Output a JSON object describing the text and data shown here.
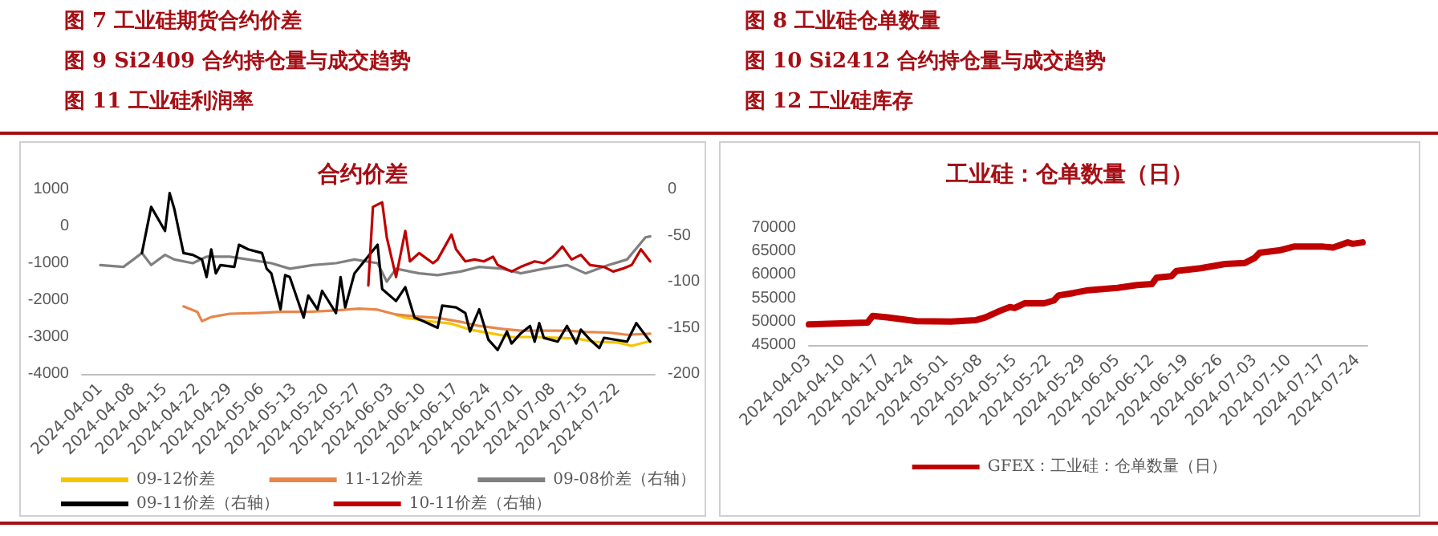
{
  "chart_data": [
    {
      "type": "line",
      "title": "合约价差",
      "annotations": [
        "图 7 工业硅期货合约价差",
        "图 9 Si2409 合约持仓量与成交趋势",
        "图 11 工业硅利润率"
      ],
      "xlim": [
        "2024-03-28",
        "2024-07-30"
      ],
      "xticks": [
        "2024-04-01",
        "2024-04-08",
        "2024-04-15",
        "2024-04-22",
        "2024-04-29",
        "2024-05-06",
        "2024-05-13",
        "2024-05-20",
        "2024-05-27",
        "2024-06-03",
        "2024-06-10",
        "2024-06-17",
        "2024-06-24",
        "2024-07-01",
        "2024-07-08",
        "2024-07-15",
        "2024-07-22"
      ],
      "ylim": [
        -4000,
        1000
      ],
      "yticks": [
        -4000,
        -3000,
        -2000,
        -1000,
        0,
        1000
      ],
      "y2lim": [
        -200,
        0
      ],
      "y2ticks": [
        -200,
        -150,
        -100,
        -50,
        0
      ],
      "grid": false,
      "legend": "bottom",
      "series": [
        {
          "name": "09-12价差",
          "color": "#f5c400",
          "x": [
            "2024-06-04",
            "2024-06-06",
            "2024-06-11",
            "2024-06-16",
            "2024-06-20",
            "2024-06-25",
            "2024-06-29",
            "2024-07-04",
            "2024-07-08",
            "2024-07-13",
            "2024-07-17",
            "2024-07-22",
            "2024-07-25",
            "2024-07-29"
          ],
          "values": [
            -2400,
            -2480,
            -2570,
            -2640,
            -2800,
            -2910,
            -3000,
            -3000,
            -3020,
            -3040,
            -3130,
            -3150,
            -3240,
            -3110
          ]
        },
        {
          "name": "11-12价差",
          "color": "#e8864a",
          "x": [
            "2024-04-19",
            "2024-04-22",
            "2024-04-23",
            "2024-04-25",
            "2024-04-29",
            "2024-05-05",
            "2024-05-10",
            "2024-05-16",
            "2024-05-22",
            "2024-05-27",
            "2024-05-31",
            "2024-06-04",
            "2024-06-09",
            "2024-06-13",
            "2024-06-18",
            "2024-06-22",
            "2024-06-27",
            "2024-07-01",
            "2024-07-06",
            "2024-07-11",
            "2024-07-15",
            "2024-07-20",
            "2024-07-24",
            "2024-07-29"
          ],
          "values": [
            -2170,
            -2320,
            -2570,
            -2460,
            -2370,
            -2350,
            -2320,
            -2320,
            -2280,
            -2230,
            -2260,
            -2390,
            -2450,
            -2480,
            -2590,
            -2700,
            -2780,
            -2830,
            -2830,
            -2830,
            -2860,
            -2880,
            -2940,
            -2910
          ]
        },
        {
          "name": "09-08价差（右轴）",
          "color": "#808080",
          "axis": "y2",
          "x": [
            "2024-04-01",
            "2024-04-06",
            "2024-04-10",
            "2024-04-12",
            "2024-04-15",
            "2024-04-17",
            "2024-04-21",
            "2024-04-24",
            "2024-04-29",
            "2024-05-03",
            "2024-05-08",
            "2024-05-12",
            "2024-05-17",
            "2024-05-22",
            "2024-05-26",
            "2024-05-31",
            "2024-06-02",
            "2024-06-04",
            "2024-06-09",
            "2024-06-13",
            "2024-06-18",
            "2024-06-22",
            "2024-06-27",
            "2024-07-01",
            "2024-07-06",
            "2024-07-11",
            "2024-07-15",
            "2024-07-20",
            "2024-07-24",
            "2024-07-28",
            "2024-07-29"
          ],
          "values": [
            -82,
            -84,
            -69,
            -82,
            -71,
            -76,
            -80,
            -73,
            -73,
            -76,
            -80,
            -86,
            -82,
            -80,
            -76,
            -80,
            -100,
            -86,
            -91,
            -93,
            -89,
            -84,
            -86,
            -91,
            -86,
            -82,
            -91,
            -82,
            -76,
            -52,
            -51
          ]
        },
        {
          "name": "09-11价差（右轴）",
          "color": "#000000",
          "axis": "y2",
          "x": [
            "2024-04-10",
            "2024-04-12",
            "2024-04-15",
            "2024-04-16",
            "2024-04-17",
            "2024-04-19",
            "2024-04-21",
            "2024-04-23",
            "2024-04-24",
            "2024-04-25",
            "2024-04-26",
            "2024-04-27",
            "2024-04-30",
            "2024-05-01",
            "2024-05-03",
            "2024-05-06",
            "2024-05-07",
            "2024-05-08",
            "2024-05-10",
            "2024-05-11",
            "2024-05-12",
            "2024-05-15",
            "2024-05-16",
            "2024-05-18",
            "2024-05-19",
            "2024-05-22",
            "2024-05-23",
            "2024-05-24",
            "2024-05-26",
            "2024-05-31",
            "2024-06-01",
            "2024-06-04",
            "2024-06-06",
            "2024-06-08",
            "2024-06-10",
            "2024-06-13",
            "2024-06-14",
            "2024-06-17",
            "2024-06-19",
            "2024-06-20",
            "2024-06-22",
            "2024-06-24",
            "2024-06-26",
            "2024-06-28",
            "2024-06-29",
            "2024-07-01",
            "2024-07-03",
            "2024-07-04",
            "2024-07-05",
            "2024-07-06",
            "2024-07-09",
            "2024-07-11",
            "2024-07-13",
            "2024-07-14",
            "2024-07-16",
            "2024-07-18",
            "2024-07-19",
            "2024-07-24",
            "2024-07-26",
            "2024-07-29"
          ],
          "values": [
            -69,
            -19,
            -45,
            -4,
            -21,
            -69,
            -71,
            -76,
            -95,
            -65,
            -91,
            -82,
            -84,
            -60,
            -65,
            -69,
            -86,
            -91,
            -130,
            -93,
            -95,
            -139,
            -115,
            -130,
            -110,
            -134,
            -95,
            -128,
            -91,
            -60,
            -108,
            -121,
            -106,
            -139,
            -143,
            -150,
            -126,
            -128,
            -134,
            -154,
            -130,
            -163,
            -174,
            -154,
            -167,
            -156,
            -148,
            -165,
            -145,
            -161,
            -165,
            -148,
            -167,
            -152,
            -163,
            -172,
            -161,
            -165,
            -145,
            -165
          ]
        },
        {
          "name": "10-11价差（右轴）",
          "color": "#c00000",
          "axis": "y2",
          "x": [
            "2024-05-29",
            "2024-05-30",
            "2024-06-01",
            "2024-06-02",
            "2024-06-04",
            "2024-06-06",
            "2024-06-07",
            "2024-06-09",
            "2024-06-12",
            "2024-06-13",
            "2024-06-16",
            "2024-06-17",
            "2024-06-19",
            "2024-06-21",
            "2024-06-23",
            "2024-06-25",
            "2024-06-26",
            "2024-06-29",
            "2024-07-01",
            "2024-07-04",
            "2024-07-06",
            "2024-07-08",
            "2024-07-10",
            "2024-07-12",
            "2024-07-14",
            "2024-07-16",
            "2024-07-19",
            "2024-07-21",
            "2024-07-23",
            "2024-07-25",
            "2024-07-27",
            "2024-07-29"
          ],
          "values": [
            -104,
            -19,
            -14,
            -52,
            -95,
            -45,
            -78,
            -69,
            -80,
            -76,
            -49,
            -65,
            -78,
            -76,
            -78,
            -73,
            -82,
            -89,
            -84,
            -78,
            -80,
            -73,
            -62,
            -76,
            -71,
            -82,
            -84,
            -89,
            -86,
            -82,
            -65,
            -78
          ]
        }
      ]
    },
    {
      "type": "line",
      "title": "工业硅：仓单数量（日）",
      "annotations": [
        "图 8 工业硅仓单数量",
        "图 10 Si2412 合约持仓量与成交趋势",
        "图 12 工业硅库存"
      ],
      "xlim": [
        "2024-04-03",
        "2024-07-26"
      ],
      "xticks": [
        "2024-04-03",
        "2024-04-10",
        "2024-04-17",
        "2024-04-24",
        "2024-05-01",
        "2024-05-08",
        "2024-05-15",
        "2024-05-22",
        "2024-05-29",
        "2024-06-05",
        "2024-06-12",
        "2024-06-19",
        "2024-06-26",
        "2024-07-03",
        "2024-07-10",
        "2024-07-17",
        "2024-07-24"
      ],
      "ylim": [
        45000,
        70000
      ],
      "yticks": [
        45000,
        50000,
        55000,
        60000,
        65000,
        70000
      ],
      "grid": false,
      "legend": "bottom",
      "series": [
        {
          "name": "GFEX：工业硅：仓单数量（日）",
          "color": "#c00000",
          "x": [
            "2024-04-03",
            "2024-04-15",
            "2024-04-16",
            "2024-04-19",
            "2024-04-25",
            "2024-05-02",
            "2024-05-07",
            "2024-05-09",
            "2024-05-12",
            "2024-05-14",
            "2024-05-15",
            "2024-05-17",
            "2024-05-21",
            "2024-05-23",
            "2024-05-24",
            "2024-05-27",
            "2024-05-30",
            "2024-06-05",
            "2024-06-09",
            "2024-06-12",
            "2024-06-13",
            "2024-06-16",
            "2024-06-17",
            "2024-06-22",
            "2024-06-27",
            "2024-07-01",
            "2024-07-03",
            "2024-07-04",
            "2024-07-08",
            "2024-07-11",
            "2024-07-17",
            "2024-07-19",
            "2024-07-22",
            "2024-07-23",
            "2024-07-25"
          ],
          "values": [
            49400,
            49800,
            51200,
            50900,
            50100,
            50000,
            50300,
            50900,
            52300,
            53100,
            52900,
            53900,
            53900,
            54500,
            55600,
            56100,
            56700,
            57200,
            57800,
            58000,
            59400,
            59700,
            60800,
            61400,
            62300,
            62500,
            63600,
            64700,
            65200,
            66000,
            66000,
            65800,
            66900,
            66600,
            66900
          ]
        }
      ]
    }
  ]
}
